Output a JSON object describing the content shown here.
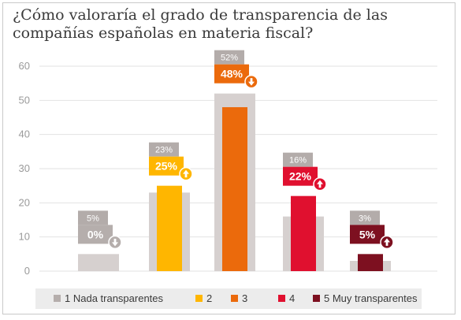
{
  "chart_data": {
    "type": "bar",
    "title": [
      "¿Cómo valoraría el grado de transparencia de las",
      "compañías españolas en materia fiscal?"
    ],
    "categories": [
      "1 Nada transparentes",
      "2",
      "3",
      "4",
      "5 Muy transparentes"
    ],
    "series": [
      {
        "values": [
          5,
          23,
          52,
          16,
          3
        ],
        "color": "#d6d0cf"
      },
      {
        "values": [
          0,
          25,
          48,
          22,
          5
        ]
      }
    ],
    "prev_labels": [
      "5%",
      "23%",
      "52%",
      "16%",
      "3%"
    ],
    "curr_labels": [
      "0%",
      "25%",
      "48%",
      "22%",
      "5%"
    ],
    "trend": [
      "down",
      "up",
      "down",
      "up",
      "up"
    ],
    "colors": [
      "#b5aeac",
      "#ffb600",
      "#eb6a0c",
      "#e0102f",
      "#7d1020"
    ],
    "prev_box_color": "#b3acaa",
    "yticks": [
      0,
      10,
      20,
      30,
      40,
      50,
      60
    ],
    "ylim": [
      0,
      60
    ],
    "grid": true,
    "legend_position": "bottom"
  }
}
